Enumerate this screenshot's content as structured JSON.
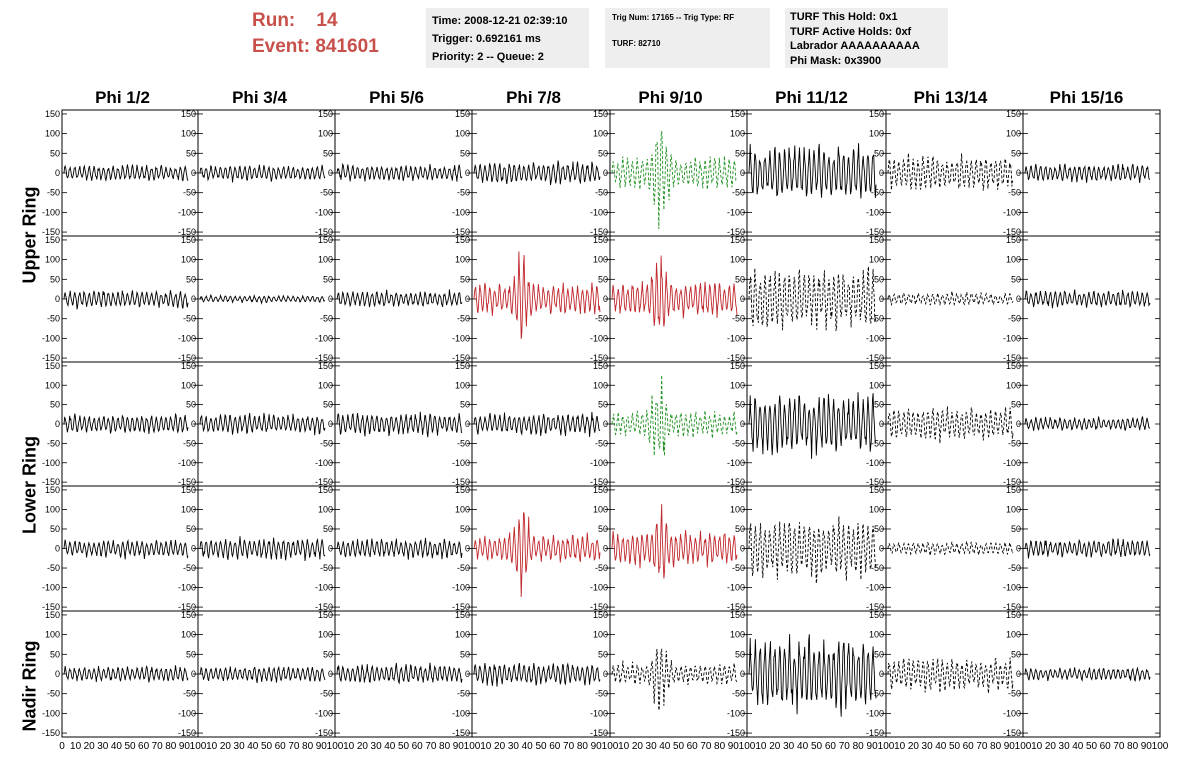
{
  "header": {
    "run_label": "Run:",
    "run_value": "14",
    "event_label": "Event:",
    "event_value": "841601"
  },
  "info_time": {
    "time": "Time: 2008-12-21 02:39:10",
    "trigger": "Trigger: 0.692161 ms",
    "priority": "Priority: 2 -- Queue: 2"
  },
  "info_trig": {
    "trig": "Trig Num: 17165 -- Trig Type: RF",
    "turf": "TURF: 82710"
  },
  "info_turf": {
    "hold": "TURF This Hold: 0x1",
    "active": "TURF Active Holds: 0xf",
    "labrador": "Labrador AAAAAAAAAA",
    "phimask": "Phi Mask: 0x3900"
  },
  "phi_headers": [
    "Phi 1/2",
    "Phi 3/4",
    "Phi 5/6",
    "Phi 7/8",
    "Phi 9/10",
    "Phi 11/12",
    "Phi 13/14",
    "Phi 15/16"
  ],
  "ring_labels": [
    "Upper Ring",
    "Lower Ring",
    "Nadir Ring"
  ],
  "y_ticks": [
    "150",
    "100",
    "50",
    "0",
    "-50",
    "-100",
    "-150"
  ],
  "x_tick_labels": [
    "0",
    "10",
    "20",
    "30",
    "40",
    "50",
    "60",
    "70",
    "80",
    "90",
    "100"
  ],
  "colors": {
    "normal": "#000000",
    "triggered_red": "#c0282d",
    "triggered_green": "#1f8f1f",
    "title": "#c8504b",
    "box": "#eeeeee"
  },
  "panels": [
    [
      {
        "style": "solid",
        "color": "black",
        "amp": 18
      },
      {
        "style": "solid",
        "color": "black",
        "amp": 18
      },
      {
        "style": "solid",
        "color": "black",
        "amp": 18
      },
      {
        "style": "solid",
        "color": "black",
        "amp": 25
      },
      {
        "style": "dashed",
        "color": "green",
        "amp": 35,
        "burst": 150
      },
      {
        "style": "solid",
        "color": "black",
        "amp": 60
      },
      {
        "style": "dashed",
        "color": "black",
        "amp": 40
      },
      {
        "style": "solid",
        "color": "black",
        "amp": 20
      }
    ],
    [
      {
        "style": "solid",
        "color": "black",
        "amp": 20
      },
      {
        "style": "solid",
        "color": "black",
        "amp": 8
      },
      {
        "style": "solid",
        "color": "black",
        "amp": 18
      },
      {
        "style": "solid",
        "color": "red",
        "amp": 35,
        "burst": 120
      },
      {
        "style": "solid",
        "color": "red",
        "amp": 40,
        "burst": 110
      },
      {
        "style": "dashed",
        "color": "black",
        "amp": 70
      },
      {
        "style": "dashed",
        "color": "black",
        "amp": 15
      },
      {
        "style": "solid",
        "color": "black",
        "amp": 20
      }
    ],
    [
      {
        "style": "solid",
        "color": "black",
        "amp": 22
      },
      {
        "style": "solid",
        "color": "black",
        "amp": 22
      },
      {
        "style": "solid",
        "color": "black",
        "amp": 25
      },
      {
        "style": "solid",
        "color": "black",
        "amp": 25
      },
      {
        "style": "dashed",
        "color": "green",
        "amp": 30,
        "burst": 110
      },
      {
        "style": "solid",
        "color": "black",
        "amp": 70
      },
      {
        "style": "dashed",
        "color": "black",
        "amp": 40
      },
      {
        "style": "solid",
        "color": "black",
        "amp": 15
      }
    ],
    [
      {
        "style": "solid",
        "color": "black",
        "amp": 20
      },
      {
        "style": "solid",
        "color": "black",
        "amp": 25
      },
      {
        "style": "solid",
        "color": "black",
        "amp": 22
      },
      {
        "style": "solid",
        "color": "red",
        "amp": 30,
        "burst": 110
      },
      {
        "style": "solid",
        "color": "red",
        "amp": 40,
        "burst": 90
      },
      {
        "style": "dashed",
        "color": "black",
        "amp": 70
      },
      {
        "style": "dashed",
        "color": "black",
        "amp": 15
      },
      {
        "style": "solid",
        "color": "black",
        "amp": 20
      }
    ],
    [
      {
        "style": "solid",
        "color": "black",
        "amp": 18
      },
      {
        "style": "solid",
        "color": "black",
        "amp": 18
      },
      {
        "style": "solid",
        "color": "black",
        "amp": 22
      },
      {
        "style": "solid",
        "color": "black",
        "amp": 25
      },
      {
        "style": "dashed",
        "color": "black",
        "amp": 25,
        "burst": 90
      },
      {
        "style": "solid",
        "color": "black",
        "amp": 85
      },
      {
        "style": "dashed",
        "color": "black",
        "amp": 40
      },
      {
        "style": "solid",
        "color": "black",
        "amp": 15
      }
    ]
  ]
}
